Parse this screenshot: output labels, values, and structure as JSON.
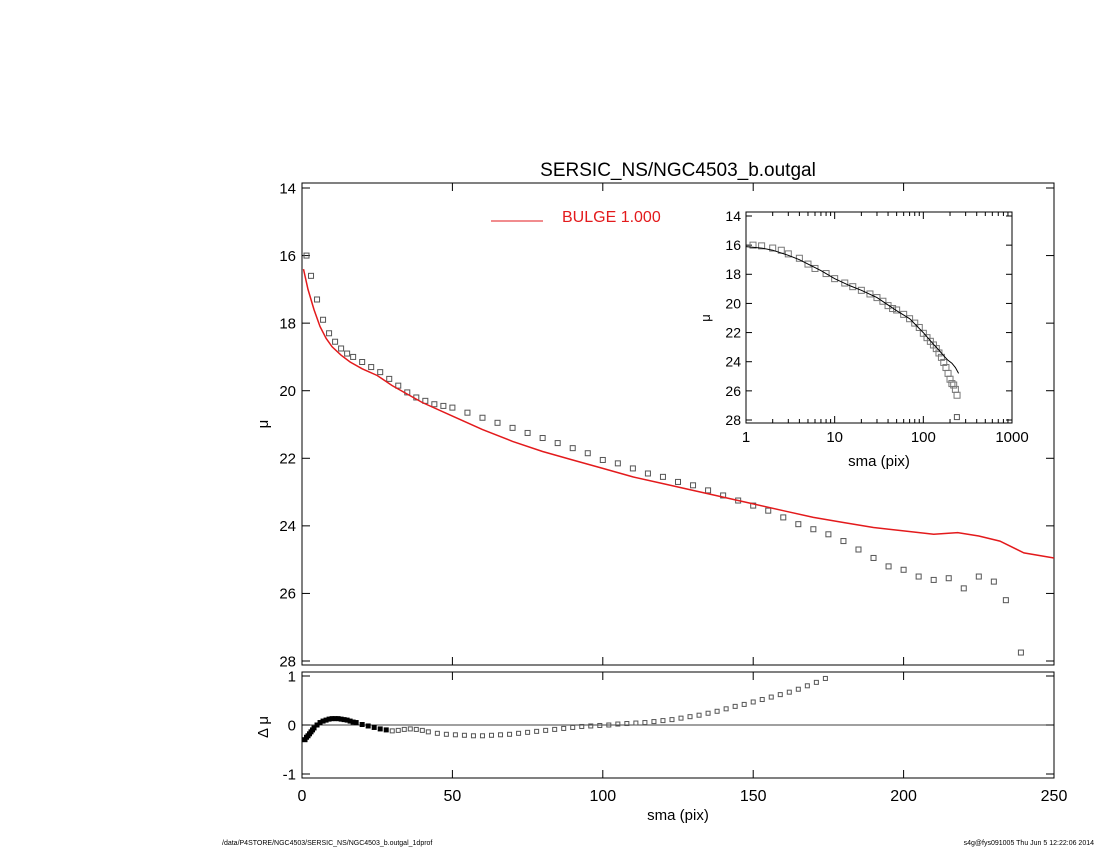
{
  "chart_data": [
    {
      "type": "scatter",
      "title": "SERSIC_NS/NGC4503_b.outgal",
      "xlabel": "",
      "ylabel": "μ",
      "xlim": [
        0,
        250
      ],
      "ylim": [
        28,
        14
      ],
      "y_reversed": true,
      "yticks": [
        14,
        16,
        18,
        20,
        22,
        24,
        26,
        28
      ],
      "xticks": [
        0,
        50,
        100,
        150,
        200,
        250
      ],
      "legend": {
        "position": "top",
        "entries": [
          {
            "label": "BULGE  1.000",
            "color": "#e31a1c"
          }
        ]
      },
      "series": [
        {
          "style": "open-squares",
          "color": "#555555",
          "x": [
            1.5,
            3,
            5,
            7,
            9,
            11,
            13,
            15,
            17,
            20,
            23,
            26,
            29,
            32,
            35,
            38,
            41,
            44,
            47,
            50,
            55,
            60,
            65,
            70,
            75,
            80,
            85,
            90,
            95,
            100,
            105,
            110,
            115,
            120,
            125,
            130,
            135,
            140,
            145,
            150,
            155,
            160,
            165,
            170,
            175,
            180,
            185,
            190,
            195,
            200,
            205,
            210,
            215,
            220,
            225,
            230,
            234,
            239
          ],
          "y": [
            16.0,
            16.6,
            17.3,
            17.9,
            18.3,
            18.55,
            18.75,
            18.9,
            19.0,
            19.15,
            19.3,
            19.45,
            19.65,
            19.85,
            20.05,
            20.2,
            20.3,
            20.4,
            20.45,
            20.5,
            20.65,
            20.8,
            20.95,
            21.1,
            21.25,
            21.4,
            21.55,
            21.7,
            21.85,
            22.05,
            22.15,
            22.3,
            22.45,
            22.55,
            22.7,
            22.8,
            22.95,
            23.1,
            23.25,
            23.4,
            23.55,
            23.75,
            23.95,
            24.1,
            24.25,
            24.45,
            24.7,
            24.95,
            25.2,
            25.3,
            25.5,
            25.6,
            25.55,
            25.85,
            25.5,
            25.65,
            26.2,
            27.75
          ]
        },
        {
          "name": "BULGE  1.000",
          "style": "line",
          "color": "#e31a1c",
          "x": [
            0.5,
            2,
            4,
            6,
            8,
            10,
            13,
            16,
            20,
            25,
            30,
            35,
            40,
            50,
            60,
            70,
            80,
            90,
            100,
            110,
            120,
            130,
            140,
            150,
            160,
            170,
            180,
            190,
            200,
            210,
            218,
            225,
            232,
            240,
            250
          ],
          "y": [
            16.4,
            17.0,
            17.6,
            18.1,
            18.45,
            18.7,
            18.95,
            19.15,
            19.35,
            19.55,
            19.85,
            20.1,
            20.35,
            20.75,
            21.15,
            21.5,
            21.8,
            22.05,
            22.3,
            22.55,
            22.75,
            22.95,
            23.15,
            23.35,
            23.55,
            23.75,
            23.9,
            24.05,
            24.15,
            24.25,
            24.2,
            24.3,
            24.45,
            24.8,
            24.95
          ]
        }
      ]
    },
    {
      "type": "scatter",
      "title": "",
      "xlabel": "sma (pix)",
      "ylabel": "Δ μ",
      "xlim": [
        0,
        250
      ],
      "ylim": [
        -1.1,
        1.1
      ],
      "yticks": [
        1,
        0,
        -1
      ],
      "xticks": [
        0,
        50,
        100,
        150,
        200,
        250
      ],
      "series": [
        {
          "style": "open-squares",
          "color": "#555555",
          "x": [
            1,
            1.5,
            2,
            2.5,
            3,
            3.5,
            4,
            5,
            6,
            7,
            8,
            9,
            10,
            11,
            12,
            13,
            14,
            15,
            16,
            17,
            18,
            20,
            22,
            24,
            26,
            28,
            30,
            32,
            34,
            36,
            38,
            40,
            42,
            45,
            48,
            51,
            54,
            57,
            60,
            63,
            66,
            69,
            72,
            75,
            78,
            81,
            84,
            87,
            90,
            93,
            96,
            99,
            102,
            105,
            108,
            111,
            114,
            117,
            120,
            123,
            126,
            129,
            132,
            135,
            138,
            141,
            144,
            147,
            150,
            153,
            156,
            159,
            162,
            165,
            168,
            171,
            174
          ],
          "y": [
            -0.3,
            -0.25,
            -0.22,
            -0.18,
            -0.14,
            -0.1,
            -0.06,
            0.0,
            0.05,
            0.08,
            0.1,
            0.12,
            0.13,
            0.13,
            0.13,
            0.12,
            0.11,
            0.1,
            0.08,
            0.06,
            0.05,
            0.01,
            -0.02,
            -0.05,
            -0.08,
            -0.1,
            -0.12,
            -0.11,
            -0.09,
            -0.08,
            -0.09,
            -0.11,
            -0.14,
            -0.17,
            -0.19,
            -0.2,
            -0.21,
            -0.22,
            -0.22,
            -0.21,
            -0.2,
            -0.19,
            -0.17,
            -0.15,
            -0.13,
            -0.11,
            -0.09,
            -0.07,
            -0.05,
            -0.03,
            -0.02,
            -0.01,
            0.0,
            0.02,
            0.03,
            0.04,
            0.05,
            0.07,
            0.09,
            0.11,
            0.14,
            0.17,
            0.2,
            0.24,
            0.28,
            0.33,
            0.38,
            0.42,
            0.47,
            0.52,
            0.57,
            0.62,
            0.67,
            0.73,
            0.8,
            0.87,
            0.95
          ]
        }
      ]
    },
    {
      "type": "line",
      "title": "",
      "xlabel": "sma (pix)",
      "ylabel": "μ",
      "x_scale": "log",
      "xlim": [
        1,
        1000
      ],
      "ylim": [
        28,
        14
      ],
      "y_reversed": true,
      "yticks": [
        14,
        16,
        18,
        20,
        22,
        24,
        26,
        28
      ],
      "xticks": [
        1,
        10,
        100,
        1000
      ],
      "series": [
        {
          "style": "open-squares",
          "color": "#777777",
          "x": [
            1.2,
            1.5,
            2,
            2.5,
            3,
            4,
            5,
            6,
            8,
            10,
            13,
            16,
            20,
            25,
            30,
            35,
            40,
            45,
            50,
            60,
            70,
            80,
            90,
            100,
            110,
            120,
            130,
            140,
            150,
            160,
            170,
            180,
            190,
            200,
            210,
            220,
            230,
            240
          ],
          "y": [
            16.0,
            16.05,
            16.2,
            16.35,
            16.6,
            16.9,
            17.3,
            17.6,
            17.95,
            18.3,
            18.6,
            18.85,
            19.1,
            19.35,
            19.6,
            19.85,
            20.15,
            20.35,
            20.45,
            20.75,
            21.05,
            21.35,
            21.65,
            22.05,
            22.35,
            22.6,
            22.85,
            23.1,
            23.4,
            23.7,
            24.05,
            24.4,
            24.8,
            25.2,
            25.5,
            25.6,
            25.9,
            26.3
          ]
        },
        {
          "style": "open-square-outlier",
          "color": "#555555",
          "x": [
            239
          ],
          "y": [
            27.8
          ]
        },
        {
          "style": "line",
          "color": "#000000",
          "x": [
            1,
            1.5,
            2,
            3,
            4,
            5,
            7,
            10,
            15,
            20,
            30,
            40,
            50,
            70,
            100,
            130,
            150,
            170,
            190,
            210,
            230,
            250
          ],
          "y": [
            16.1,
            16.2,
            16.35,
            16.7,
            17.0,
            17.3,
            17.75,
            18.3,
            18.8,
            19.1,
            19.6,
            20.1,
            20.5,
            21.05,
            22.0,
            22.8,
            23.2,
            23.6,
            23.9,
            24.1,
            24.4,
            24.8
          ]
        }
      ]
    }
  ],
  "footer": {
    "left": "/data/P4STORE/NGC4503/SERSIC_NS/NGC4503_b.outgal_1dprof",
    "right": "s4g@fys091005  Thu Jun  5 12:22:06 2014"
  }
}
